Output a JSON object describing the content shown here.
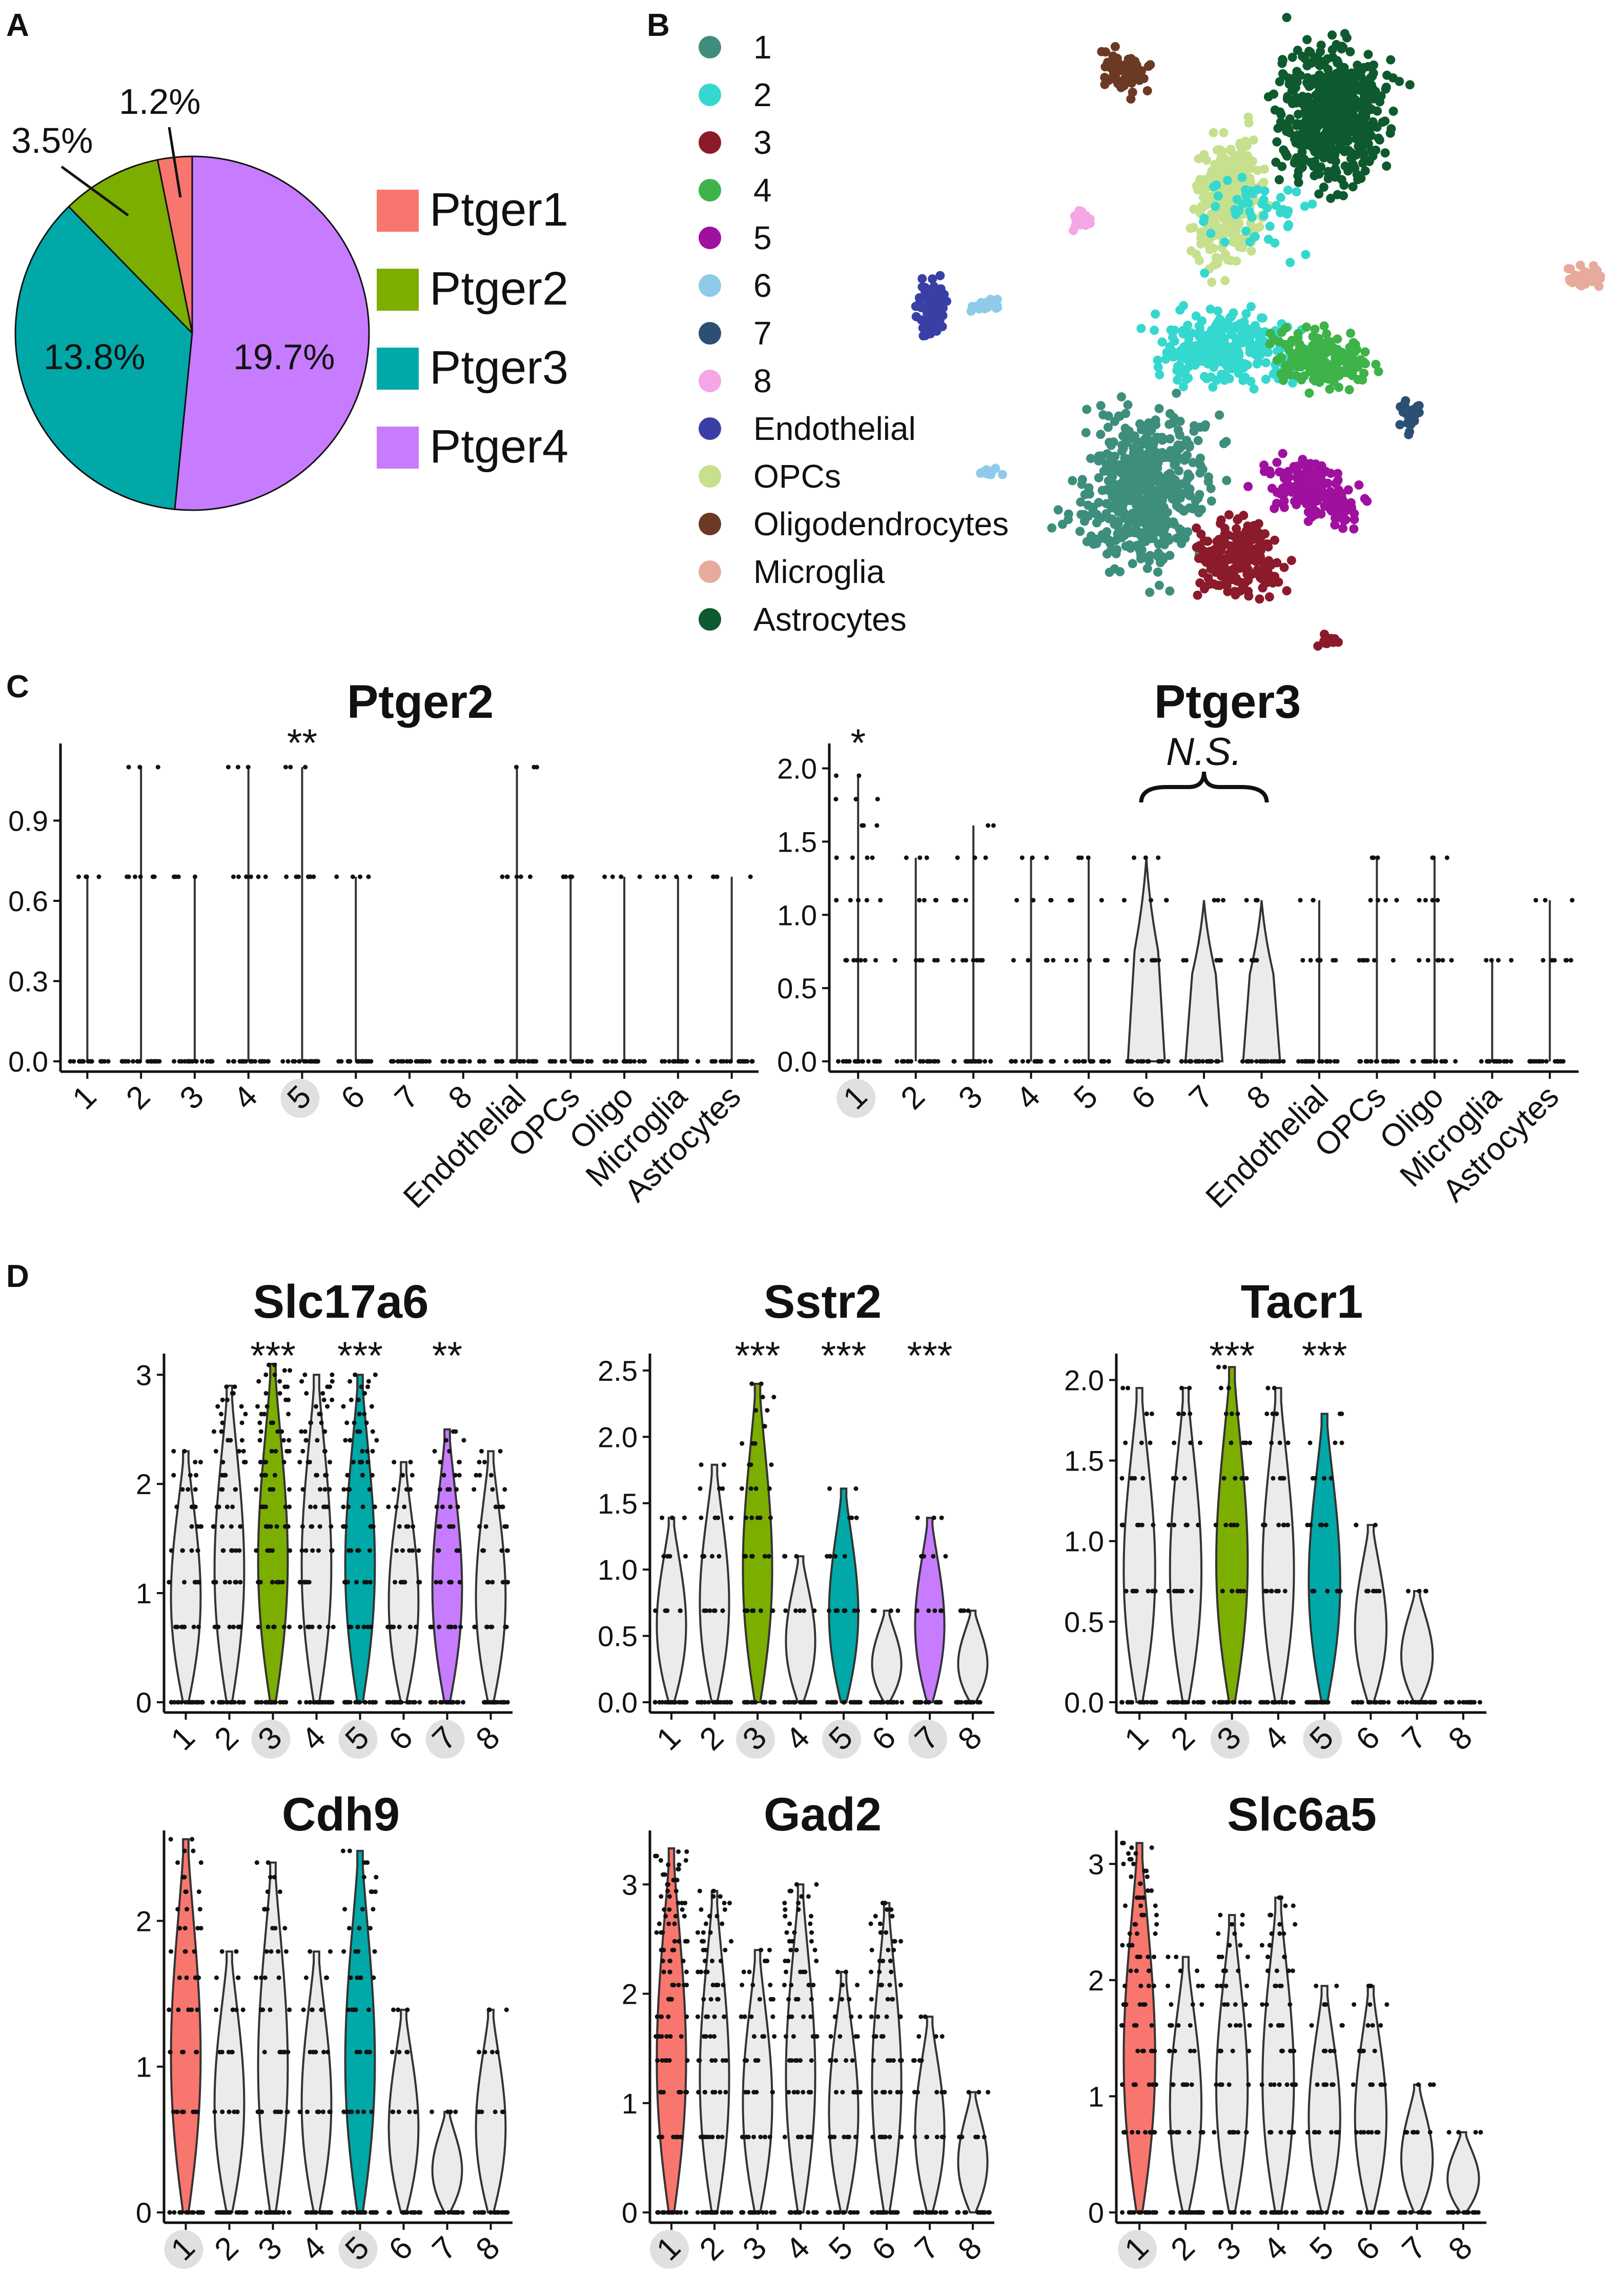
{
  "panels": {
    "a": "A",
    "b": "B",
    "c": "C",
    "d": "D"
  },
  "colors": {
    "ptger1": "#F8766D",
    "ptger2": "#7CAE00",
    "ptger3": "#00A9A8",
    "ptger4": "#C77CFF",
    "grey": "#EBEBEB",
    "highlight": "#E0E0E0"
  },
  "chart_data": [
    {
      "type": "pie",
      "panel": "A",
      "slices": [
        {
          "label": "Ptger1",
          "value": 1.2,
          "display": "1.2%",
          "color": "#F8766D"
        },
        {
          "label": "Ptger2",
          "value": 3.5,
          "display": "3.5%",
          "color": "#7CAE00"
        },
        {
          "label": "Ptger3",
          "value": 13.8,
          "display": "13.8%",
          "color": "#00A9A8"
        },
        {
          "label": "Ptger4",
          "value": 19.7,
          "display": "19.7%",
          "color": "#C77CFF"
        }
      ],
      "legend_position": "right"
    },
    {
      "type": "scatter",
      "panel": "B",
      "legend": [
        {
          "label": "1",
          "color": "#3E8E7E"
        },
        {
          "label": "2",
          "color": "#35D8CF"
        },
        {
          "label": "3",
          "color": "#8B1A2B"
        },
        {
          "label": "4",
          "color": "#3DB34A"
        },
        {
          "label": "5",
          "color": "#A0109E"
        },
        {
          "label": "6",
          "color": "#8FCBE8"
        },
        {
          "label": "7",
          "color": "#2C4F74"
        },
        {
          "label": "8",
          "color": "#F4A6E6"
        },
        {
          "label": "Endothelial",
          "color": "#3A3FA6"
        },
        {
          "label": "OPCs",
          "color": "#C6E08E"
        },
        {
          "label": "Oligodendrocytes",
          "color": "#6B3A25"
        },
        {
          "label": "Microglia",
          "color": "#E8AA9C"
        },
        {
          "label": "Astrocytes",
          "color": "#0E5A2E"
        }
      ],
      "legend_position": "left"
    },
    {
      "type": "violin",
      "panel": "C",
      "title": "Ptger2",
      "categories": [
        "1",
        "2",
        "3",
        "4",
        "5",
        "6",
        "7",
        "8",
        "Endothelial",
        "OPCs",
        "Oligo",
        "Microglia",
        "Astrocytes"
      ],
      "ylim": [
        0,
        1.15
      ],
      "yticks": [
        "0.0",
        "0.3",
        "0.6",
        "0.9"
      ],
      "highlight": [
        "5"
      ],
      "annotations": [
        {
          "category": "5",
          "text": "**"
        }
      ],
      "max_values": [
        0.69,
        1.1,
        0.69,
        1.1,
        1.1,
        0.69,
        0,
        0,
        1.1,
        0.69,
        0.69,
        0.69,
        0.69
      ]
    },
    {
      "type": "violin",
      "panel": "C",
      "title": "Ptger3",
      "categories": [
        "1",
        "2",
        "3",
        "4",
        "5",
        "6",
        "7",
        "8",
        "Endothelial",
        "OPCs",
        "Oligo",
        "Microglia",
        "Astrocytes"
      ],
      "ylim": [
        0,
        2.1
      ],
      "yticks": [
        "0.0",
        "0.5",
        "1.0",
        "1.5",
        "2.0"
      ],
      "highlight": [
        "1"
      ],
      "annotations": [
        {
          "category": "1",
          "text": "*"
        },
        {
          "category": "7",
          "text": "N.S."
        }
      ],
      "max_values": [
        1.95,
        1.39,
        1.61,
        1.39,
        1.39,
        1.39,
        1.1,
        1.1,
        1.1,
        1.39,
        1.39,
        0.69,
        1.1
      ]
    },
    {
      "type": "violin",
      "panel": "D",
      "title": "Slc17a6",
      "categories": [
        "1",
        "2",
        "3",
        "4",
        "5",
        "6",
        "7",
        "8"
      ],
      "ylim": [
        0,
        3.1
      ],
      "yticks": [
        "0",
        "1",
        "2",
        "3"
      ],
      "highlight": [
        "3",
        "5",
        "7"
      ],
      "annotations": [
        {
          "category": "3",
          "text": "***"
        },
        {
          "category": "5",
          "text": "***"
        },
        {
          "category": "7",
          "text": "**"
        }
      ],
      "max_values": [
        2.3,
        2.9,
        3.1,
        3.0,
        3.0,
        2.2,
        2.5,
        2.3
      ]
    },
    {
      "type": "violin",
      "panel": "D",
      "title": "Sstr2",
      "categories": [
        "1",
        "2",
        "3",
        "4",
        "5",
        "6",
        "7",
        "8"
      ],
      "ylim": [
        0,
        2.55
      ],
      "yticks": [
        "0.0",
        "0.5",
        "1.0",
        "1.5",
        "2.0",
        "2.5"
      ],
      "highlight": [
        "3",
        "5",
        "7"
      ],
      "annotations": [
        {
          "category": "3",
          "text": "***"
        },
        {
          "category": "5",
          "text": "***"
        },
        {
          "category": "7",
          "text": "***"
        }
      ],
      "max_values": [
        1.39,
        1.79,
        2.4,
        1.1,
        1.61,
        0.69,
        1.39,
        0.69
      ]
    },
    {
      "type": "violin",
      "panel": "D",
      "title": "Tacr1",
      "categories": [
        "1",
        "2",
        "3",
        "4",
        "5",
        "6",
        "7",
        "8"
      ],
      "ylim": [
        0,
        2.1
      ],
      "yticks": [
        "0.0",
        "0.5",
        "1.0",
        "1.5",
        "2.0"
      ],
      "highlight": [
        "3",
        "5"
      ],
      "annotations": [
        {
          "category": "3",
          "text": "***"
        },
        {
          "category": "5",
          "text": "***"
        }
      ],
      "max_values": [
        1.95,
        1.95,
        2.08,
        1.95,
        1.79,
        1.1,
        0.69,
        0.0
      ]
    },
    {
      "type": "violin",
      "panel": "D",
      "title": "Cdh9",
      "categories": [
        "1",
        "2",
        "3",
        "4",
        "5",
        "6",
        "7",
        "8"
      ],
      "ylim": [
        0,
        2.55
      ],
      "yticks": [
        "0",
        "1",
        "2"
      ],
      "highlight": [
        "1",
        "5"
      ],
      "annotations": [],
      "max_values": [
        2.56,
        1.79,
        2.4,
        1.79,
        2.48,
        1.39,
        0.69,
        1.39
      ]
    },
    {
      "type": "violin",
      "panel": "D",
      "title": "Gad2",
      "categories": [
        "1",
        "2",
        "3",
        "4",
        "5",
        "6",
        "7",
        "8"
      ],
      "ylim": [
        0,
        3.4
      ],
      "yticks": [
        "0",
        "1",
        "2",
        "3"
      ],
      "highlight": [
        "1"
      ],
      "annotations": [],
      "max_values": [
        3.33,
        2.94,
        2.4,
        3.0,
        2.2,
        2.83,
        1.79,
        1.1
      ]
    },
    {
      "type": "violin",
      "panel": "D",
      "title": "Slc6a5",
      "categories": [
        "1",
        "2",
        "3",
        "4",
        "5",
        "6",
        "7",
        "8"
      ],
      "ylim": [
        0,
        3.2
      ],
      "yticks": [
        "0",
        "1",
        "2",
        "3"
      ],
      "highlight": [
        "1"
      ],
      "annotations": [],
      "max_values": [
        3.18,
        2.2,
        2.56,
        2.71,
        1.95,
        1.95,
        1.1,
        0.69
      ]
    }
  ]
}
